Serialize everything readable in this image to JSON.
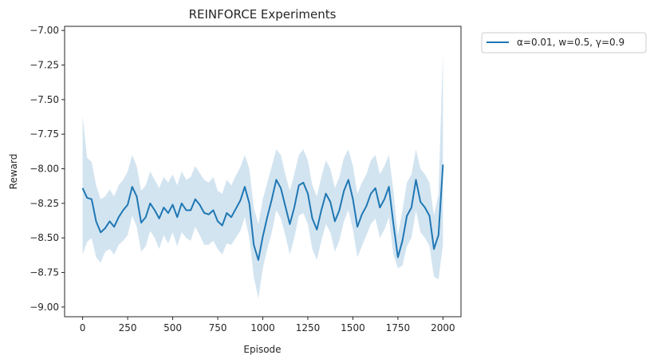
{
  "chart_data": {
    "type": "line",
    "title": "REINFORCE Experiments",
    "xlabel": "Episode",
    "ylabel": "Reward",
    "xlim": [
      -100,
      2100
    ],
    "ylim": [
      -9.07,
      -6.97
    ],
    "xticks": [
      0,
      250,
      500,
      750,
      1000,
      1250,
      1500,
      1750,
      2000
    ],
    "yticks": [
      -9.0,
      -8.75,
      -8.5,
      -8.25,
      -8.0,
      -7.75,
      -7.5,
      -7.25,
      -7.0
    ],
    "xtick_labels": [
      "0",
      "250",
      "500",
      "750",
      "1000",
      "1250",
      "1500",
      "1750",
      "2000"
    ],
    "ytick_labels": [
      "−9.00",
      "−8.75",
      "−8.50",
      "−8.25",
      "−8.00",
      "−7.75",
      "−7.50",
      "−7.25",
      "−7.00"
    ],
    "grid": false,
    "legend_position": "outside-top-right",
    "series": [
      {
        "name": "α=0.01, w=0.5, γ=0.9",
        "color": "#1f77b4",
        "band_color": "#1f77b4",
        "x": [
          0,
          25,
          50,
          75,
          100,
          125,
          150,
          175,
          200,
          225,
          250,
          275,
          300,
          325,
          350,
          375,
          400,
          425,
          450,
          475,
          500,
          525,
          550,
          575,
          600,
          625,
          650,
          675,
          700,
          725,
          750,
          775,
          800,
          825,
          850,
          875,
          900,
          925,
          950,
          975,
          1000,
          1025,
          1050,
          1075,
          1100,
          1125,
          1150,
          1175,
          1200,
          1225,
          1250,
          1275,
          1300,
          1325,
          1350,
          1375,
          1400,
          1425,
          1450,
          1475,
          1500,
          1525,
          1550,
          1575,
          1600,
          1625,
          1650,
          1675,
          1700,
          1725,
          1750,
          1775,
          1800,
          1825,
          1850,
          1875,
          1900,
          1925,
          1950,
          1975,
          2000
        ],
        "y": [
          -8.14,
          -8.21,
          -8.22,
          -8.38,
          -8.46,
          -8.43,
          -8.38,
          -8.42,
          -8.35,
          -8.3,
          -8.26,
          -8.13,
          -8.2,
          -8.39,
          -8.35,
          -8.25,
          -8.3,
          -8.36,
          -8.28,
          -8.32,
          -8.26,
          -8.35,
          -8.25,
          -8.3,
          -8.3,
          -8.22,
          -8.26,
          -8.32,
          -8.33,
          -8.3,
          -8.38,
          -8.41,
          -8.32,
          -8.35,
          -8.29,
          -8.23,
          -8.13,
          -8.25,
          -8.55,
          -8.66,
          -8.49,
          -8.35,
          -8.22,
          -8.08,
          -8.14,
          -8.27,
          -8.4,
          -8.28,
          -8.12,
          -8.1,
          -8.18,
          -8.36,
          -8.44,
          -8.3,
          -8.18,
          -8.24,
          -8.38,
          -8.3,
          -8.16,
          -8.08,
          -8.22,
          -8.42,
          -8.33,
          -8.27,
          -8.18,
          -8.14,
          -8.28,
          -8.22,
          -8.13,
          -8.4,
          -8.64,
          -8.52,
          -8.34,
          -8.28,
          -8.08,
          -8.24,
          -8.28,
          -8.34,
          -8.58,
          -8.48,
          -7.97
        ],
        "lower": [
          -8.62,
          -8.53,
          -8.5,
          -8.64,
          -8.68,
          -8.6,
          -8.58,
          -8.62,
          -8.55,
          -8.52,
          -8.48,
          -8.34,
          -8.42,
          -8.6,
          -8.56,
          -8.45,
          -8.5,
          -8.58,
          -8.48,
          -8.54,
          -8.46,
          -8.56,
          -8.46,
          -8.5,
          -8.52,
          -8.42,
          -8.48,
          -8.55,
          -8.55,
          -8.52,
          -8.58,
          -8.62,
          -8.54,
          -8.55,
          -8.5,
          -8.45,
          -8.35,
          -8.5,
          -8.78,
          -8.94,
          -8.72,
          -8.58,
          -8.46,
          -8.3,
          -8.36,
          -8.48,
          -8.62,
          -8.5,
          -8.34,
          -8.32,
          -8.4,
          -8.58,
          -8.66,
          -8.52,
          -8.4,
          -8.46,
          -8.6,
          -8.52,
          -8.38,
          -8.3,
          -8.44,
          -8.64,
          -8.56,
          -8.48,
          -8.4,
          -8.36,
          -8.5,
          -8.44,
          -8.35,
          -8.62,
          -8.72,
          -8.7,
          -8.56,
          -8.5,
          -8.3,
          -8.46,
          -8.5,
          -8.56,
          -8.78,
          -8.8,
          -8.55
        ],
        "upper": [
          -7.62,
          -7.92,
          -7.95,
          -8.12,
          -8.22,
          -8.2,
          -8.15,
          -8.2,
          -8.12,
          -8.08,
          -8.02,
          -7.9,
          -7.98,
          -8.16,
          -8.12,
          -8.02,
          -8.08,
          -8.14,
          -8.06,
          -8.1,
          -8.04,
          -8.12,
          -8.02,
          -8.08,
          -8.06,
          -7.98,
          -8.03,
          -8.08,
          -8.1,
          -8.06,
          -8.16,
          -8.18,
          -8.08,
          -8.12,
          -8.05,
          -7.99,
          -7.9,
          -8.0,
          -8.28,
          -8.4,
          -8.22,
          -8.1,
          -7.98,
          -7.86,
          -7.9,
          -8.04,
          -8.16,
          -8.04,
          -7.9,
          -7.86,
          -7.94,
          -8.12,
          -8.2,
          -8.06,
          -7.94,
          -8.0,
          -8.14,
          -8.06,
          -7.92,
          -7.86,
          -7.98,
          -8.18,
          -8.1,
          -8.04,
          -7.94,
          -7.9,
          -8.04,
          -7.98,
          -7.9,
          -8.16,
          -8.48,
          -8.3,
          -8.1,
          -8.04,
          -7.86,
          -8.0,
          -8.04,
          -8.1,
          -8.34,
          -8.18,
          -7.15
        ]
      }
    ]
  }
}
